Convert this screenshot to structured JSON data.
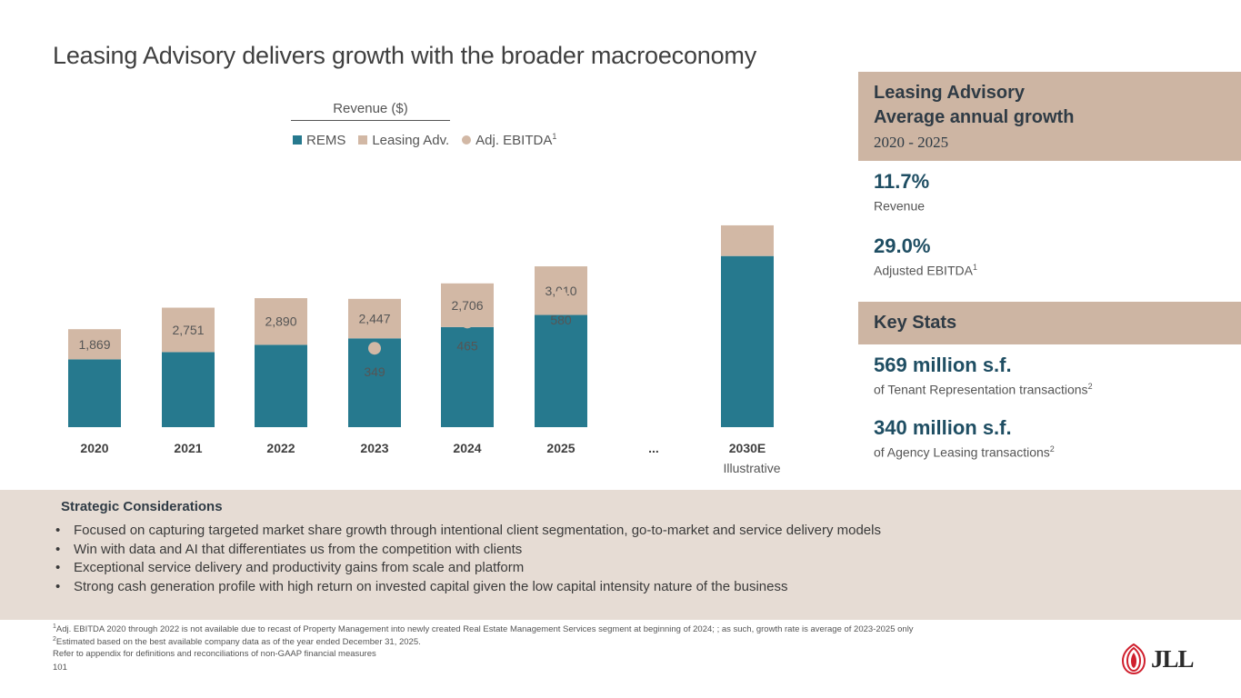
{
  "title": "Leasing Advisory delivers growth with the broader macroeconomy",
  "colors": {
    "rems": "#26798e",
    "leasing": "#d2b8a5",
    "dot": "#d2b8a5",
    "panel": "#cdb5a3",
    "strategic_bg": "#e6dcd4"
  },
  "chart_data": {
    "type": "bar",
    "title": "Revenue ($)",
    "categories": [
      "2020",
      "2021",
      "2022",
      "2023",
      "2024",
      "2025",
      "...",
      "2030E"
    ],
    "category_sublabels": [
      "",
      "",
      "",
      "",
      "",
      "",
      "",
      "Illustrative"
    ],
    "legend": [
      "REMS",
      "Leasing Adv.",
      "Adj. EBITDA"
    ],
    "legend_ebitda_sup": "1",
    "series": [
      {
        "name": "REMS",
        "values": [
          4200,
          4650,
          5100,
          5500,
          6200,
          6950,
          null,
          10600
        ],
        "labeled": false
      },
      {
        "name": "Leasing Adv.",
        "values": [
          1869,
          2751,
          2890,
          2447,
          2706,
          3010,
          null,
          1900
        ],
        "labeled": true,
        "value_labels": [
          "1,869",
          "2,751",
          "2,890",
          "2,447",
          "2,706",
          "3,010",
          "",
          ""
        ]
      },
      {
        "name": "Adj. EBITDA",
        "type": "scatter",
        "values": [
          null,
          null,
          null,
          349,
          465,
          580,
          null,
          830
        ],
        "value_labels": [
          "",
          "",
          "",
          "349",
          "465",
          "580",
          "",
          ""
        ]
      }
    ],
    "ylim": [
      0,
      17000
    ]
  },
  "growth": {
    "heading_line1": "Leasing Advisory",
    "heading_line2": "Average annual growth",
    "period": "2020 - 2025",
    "stats": [
      {
        "value": "11.7%",
        "label": "Revenue",
        "sup": ""
      },
      {
        "value": "29.0%",
        "label": "Adjusted EBITDA",
        "sup": "1"
      }
    ]
  },
  "key_stats": {
    "heading": "Key Stats",
    "stats": [
      {
        "value": "569 million s.f.",
        "label": "of Tenant Representation transactions",
        "sup": "2"
      },
      {
        "value": "340 million s.f.",
        "label": "of Agency Leasing transactions",
        "sup": "2"
      }
    ]
  },
  "strategic": {
    "heading": "Strategic Considerations",
    "bullet": "•",
    "items": [
      "Focused on capturing targeted market share growth through intentional client segmentation, go-to-market and service delivery models",
      "Win with data and AI that differentiates us from the competition with clients",
      "Exceptional service delivery and productivity gains from scale and platform",
      "Strong cash generation profile with high return on invested capital given the low capital intensity nature of the business"
    ]
  },
  "footnotes": {
    "n1_sup": "1",
    "n1": "Adj. EBITDA 2020 through 2022 is not available due to recast of Property Management into newly created Real Estate Management Services segment at beginning of 2024; ;  as such, growth rate is average of 2023-2025 only",
    "n2_sup": "2",
    "n2": "Estimated based on the best available company data as of the year ended December 31, 2025.",
    "n3": "Refer to appendix for definitions and reconciliations of non-GAAP financial measures",
    "page": "101"
  },
  "logo": {
    "text": "JLL",
    "icon": "jll-flame-icon"
  }
}
